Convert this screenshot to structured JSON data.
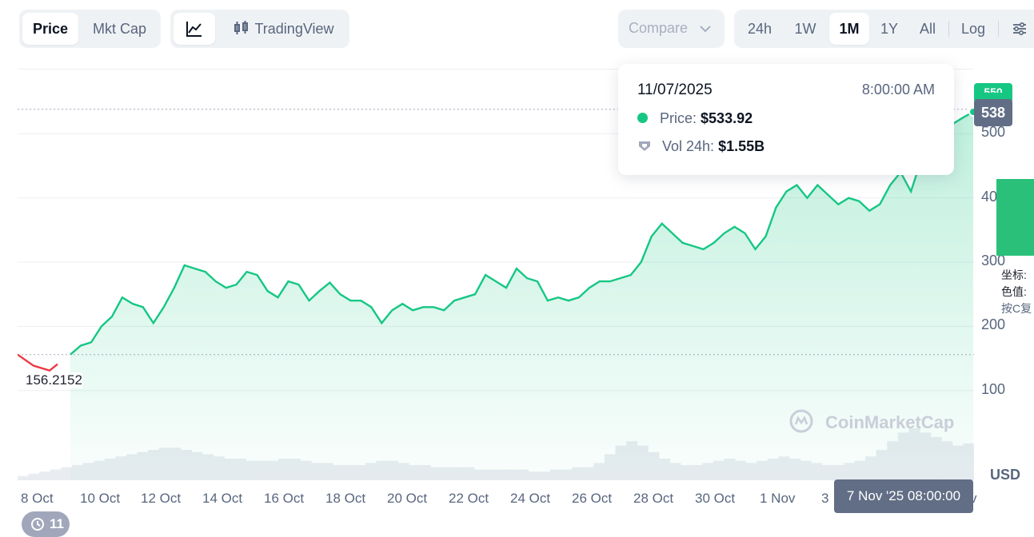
{
  "toolbar": {
    "type_tabs": [
      "Price",
      "Mkt Cap"
    ],
    "tradingview_label": "TradingView",
    "compare_label": "Compare",
    "ranges": [
      "24h",
      "1W",
      "1M",
      "1Y",
      "All"
    ],
    "log_label": "Log"
  },
  "tooltip": {
    "date": "11/07/2025",
    "time": "8:00:00 AM",
    "price_label": "Price:",
    "price_value": "$533.92",
    "vol_label": "Vol 24h:",
    "vol_value": "$1.55B"
  },
  "current_price_tag": "538",
  "current_price_tag_top": "550",
  "start_price_label": "156.2152",
  "currency_label": "USD",
  "hover_time_badge": "7 Nov '25 08:00:00",
  "history_badge_count": "11",
  "watermark": "CoinMarketCap",
  "side_widget": {
    "line1": "坐标:",
    "line2": "色值:",
    "line3": "按C复"
  },
  "colors": {
    "line": "#16c784",
    "fill": "#16c784",
    "down": "#ea3943",
    "badge": "#616e85"
  },
  "chart_data": {
    "type": "area",
    "y_ticks": [
      "100",
      "200",
      "300",
      "400",
      "500",
      "550"
    ],
    "y_tick_values": [
      100,
      200,
      300,
      400,
      500,
      550
    ],
    "x_ticks": [
      "8 Oct",
      "10 Oct",
      "12 Oct",
      "14 Oct",
      "16 Oct",
      "18 Oct",
      "20 Oct",
      "22 Oct",
      "24 Oct",
      "26 Oct",
      "28 Oct",
      "30 Oct",
      "1 Nov",
      "3",
      "v"
    ],
    "ylim": [
      10,
      600
    ],
    "series": [
      {
        "values": [
          156,
          170,
          175,
          200,
          215,
          245,
          235,
          230,
          205,
          230,
          260,
          295,
          290,
          285,
          270,
          260,
          265,
          285,
          280,
          255,
          245,
          270,
          265,
          240,
          255,
          268,
          250,
          240,
          240,
          230,
          205,
          225,
          235,
          225,
          230,
          230,
          225,
          240,
          245,
          250,
          280,
          270,
          260,
          290,
          275,
          270,
          240,
          245,
          240,
          245,
          260,
          270,
          270,
          275,
          280,
          300,
          340,
          360,
          345,
          330,
          325,
          320,
          330,
          345,
          355,
          345,
          320,
          340,
          385,
          410,
          420,
          400,
          420,
          405,
          390,
          400,
          395,
          380,
          390,
          420,
          440,
          410,
          460,
          480,
          520,
          515,
          525,
          534
        ]
      }
    ],
    "volume": [
      2,
      3,
      4,
      5,
      6,
      7,
      8,
      9,
      10,
      11,
      12,
      13,
      14,
      15,
      15,
      14,
      13,
      12,
      11,
      10,
      10,
      9,
      9,
      9,
      10,
      10,
      9,
      8,
      8,
      7,
      7,
      7,
      8,
      9,
      9,
      8,
      7,
      7,
      6,
      6,
      6,
      6,
      5,
      5,
      5,
      5,
      5,
      4,
      4,
      5,
      5,
      6,
      6,
      8,
      12,
      16,
      18,
      16,
      13,
      10,
      8,
      7,
      7,
      8,
      9,
      10,
      9,
      8,
      9,
      10,
      11,
      10,
      9,
      8,
      7,
      7,
      8,
      9,
      11,
      14,
      18,
      22,
      24,
      22,
      20,
      18,
      16,
      17
    ]
  }
}
